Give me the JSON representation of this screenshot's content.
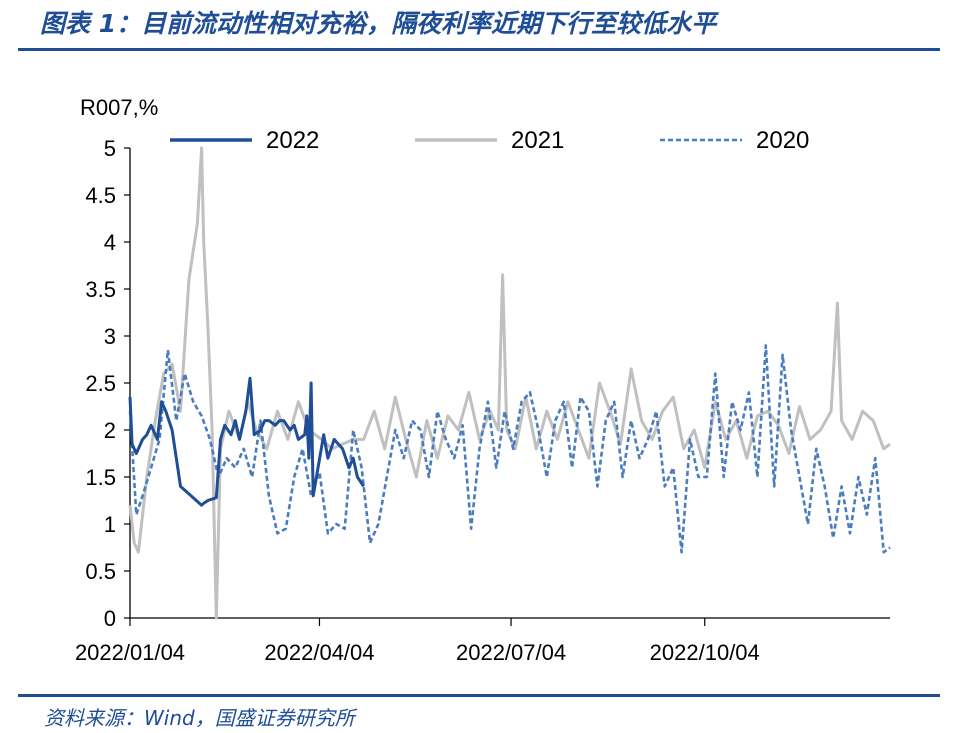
{
  "header": {
    "title": "图表 1：目前流动性相对充裕，隔夜利率近期下行至较低水平"
  },
  "footer": {
    "source": "资料来源：Wind，国盛证券研究所"
  },
  "chart_data": {
    "type": "line",
    "ylabel": "R007,%",
    "ylim": [
      0,
      5
    ],
    "yticks": [
      "0",
      "0.5",
      "1",
      "1.5",
      "2",
      "2.5",
      "3",
      "3.5",
      "4",
      "4.5",
      "5"
    ],
    "xlabel": "",
    "x_range": [
      "2022/01/04",
      "2022/12/31"
    ],
    "xticks": [
      "2022/01/04",
      "2022/04/04",
      "2022/07/04",
      "2022/10/04"
    ],
    "grid": false,
    "legend_position": "top",
    "series": [
      {
        "name": "2022",
        "style": "solid",
        "color": "#1f4e96",
        "x": [
          "2022/01/04",
          "2022/01/05",
          "2022/01/07",
          "2022/01/10",
          "2022/01/12",
          "2022/01/14",
          "2022/01/17",
          "2022/01/19",
          "2022/01/21",
          "2022/01/24",
          "2022/01/26",
          "2022/01/28",
          "2022/02/07",
          "2022/02/08",
          "2022/02/10",
          "2022/02/14",
          "2022/02/16",
          "2022/02/18",
          "2022/02/21",
          "2022/02/23",
          "2022/02/25",
          "2022/02/28",
          "2022/03/02",
          "2022/03/04",
          "2022/03/07",
          "2022/03/09",
          "2022/03/11",
          "2022/03/14",
          "2022/03/16",
          "2022/03/18",
          "2022/03/21",
          "2022/03/23",
          "2022/03/25",
          "2022/03/28",
          "2022/03/29",
          "2022/03/30",
          "2022/03/31",
          "2022/04/01",
          "2022/04/06",
          "2022/04/08",
          "2022/04/11",
          "2022/04/13",
          "2022/04/15",
          "2022/04/18",
          "2022/04/20",
          "2022/04/22",
          "2022/04/25"
        ],
        "y": [
          2.35,
          1.85,
          1.75,
          1.9,
          1.95,
          2.05,
          1.9,
          2.3,
          2.2,
          2.0,
          1.7,
          1.4,
          1.2,
          1.22,
          1.25,
          1.28,
          1.9,
          2.05,
          1.95,
          2.1,
          1.9,
          2.2,
          2.55,
          1.95,
          2.0,
          2.1,
          2.1,
          2.05,
          2.1,
          2.1,
          2.0,
          2.05,
          1.9,
          1.95,
          2.15,
          1.7,
          2.5,
          1.3,
          1.95,
          1.7,
          1.9,
          1.85,
          1.8,
          1.6,
          1.7,
          1.5,
          1.4
        ]
      },
      {
        "name": "2021",
        "style": "solid",
        "color": "#c0c0c0",
        "x": [
          "2022/01/04",
          "2022/01/06",
          "2022/01/08",
          "2022/01/12",
          "2022/01/16",
          "2022/01/20",
          "2022/01/24",
          "2022/01/28",
          "2022/02/01",
          "2022/02/05",
          "2022/02/07",
          "2022/02/08",
          "2022/02/10",
          "2022/02/12",
          "2022/02/14",
          "2022/02/16",
          "2022/02/20",
          "2022/02/25",
          "2022/03/01",
          "2022/03/05",
          "2022/03/10",
          "2022/03/15",
          "2022/03/20",
          "2022/03/25",
          "2022/03/30",
          "2022/04/05",
          "2022/04/10",
          "2022/04/15",
          "2022/04/20",
          "2022/04/25",
          "2022/04/30",
          "2022/05/05",
          "2022/05/10",
          "2022/05/15",
          "2022/05/20",
          "2022/05/25",
          "2022/05/30",
          "2022/06/04",
          "2022/06/09",
          "2022/06/14",
          "2022/06/19",
          "2022/06/24",
          "2022/06/28",
          "2022/06/30",
          "2022/07/02",
          "2022/07/06",
          "2022/07/11",
          "2022/07/16",
          "2022/07/21",
          "2022/07/26",
          "2022/07/31",
          "2022/08/05",
          "2022/08/10",
          "2022/08/15",
          "2022/08/20",
          "2022/08/25",
          "2022/08/30",
          "2022/09/04",
          "2022/09/09",
          "2022/09/14",
          "2022/09/19",
          "2022/09/24",
          "2022/09/29",
          "2022/10/04",
          "2022/10/09",
          "2022/10/14",
          "2022/10/19",
          "2022/10/24",
          "2022/10/29",
          "2022/11/03",
          "2022/11/08",
          "2022/11/13",
          "2022/11/18",
          "2022/11/23",
          "2022/11/28",
          "2022/12/03",
          "2022/12/06",
          "2022/12/08",
          "2022/12/13",
          "2022/12/18",
          "2022/12/23",
          "2022/12/28",
          "2022/12/31"
        ],
        "y": [
          1.2,
          0.8,
          0.7,
          1.5,
          2.1,
          2.6,
          2.7,
          2.2,
          3.6,
          4.2,
          5.0,
          4.0,
          3.1,
          2.0,
          0.0,
          1.8,
          2.2,
          1.9,
          2.3,
          2.0,
          1.8,
          2.2,
          1.9,
          2.3,
          2.0,
          1.9,
          1.8,
          1.85,
          1.9,
          1.9,
          2.2,
          1.8,
          2.35,
          1.9,
          1.5,
          2.1,
          1.7,
          2.15,
          2.0,
          2.4,
          1.9,
          2.2,
          2.0,
          3.65,
          2.0,
          1.8,
          2.35,
          1.8,
          2.2,
          1.9,
          2.3,
          2.0,
          1.7,
          2.5,
          2.2,
          1.85,
          2.65,
          2.1,
          1.9,
          2.2,
          2.35,
          1.8,
          2.0,
          1.6,
          2.3,
          1.9,
          2.1,
          1.7,
          2.15,
          2.2,
          2.05,
          1.75,
          2.25,
          1.9,
          2.0,
          2.2,
          3.35,
          2.1,
          1.9,
          2.2,
          2.1,
          1.8,
          1.85
        ]
      },
      {
        "name": "2020",
        "style": "dashed",
        "color": "#4a7cc0",
        "x": [
          "2022/01/04",
          "2022/01/07",
          "2022/01/10",
          "2022/01/14",
          "2022/01/18",
          "2022/01/22",
          "2022/01/26",
          "2022/01/30",
          "2022/02/03",
          "2022/02/07",
          "2022/02/11",
          "2022/02/15",
          "2022/02/19",
          "2022/02/23",
          "2022/02/27",
          "2022/03/03",
          "2022/03/07",
          "2022/03/11",
          "2022/03/15",
          "2022/03/19",
          "2022/03/23",
          "2022/03/27",
          "2022/03/31",
          "2022/04/04",
          "2022/04/08",
          "2022/04/12",
          "2022/04/16",
          "2022/04/20",
          "2022/04/24",
          "2022/04/28",
          "2022/05/02",
          "2022/05/06",
          "2022/05/10",
          "2022/05/14",
          "2022/05/18",
          "2022/05/22",
          "2022/05/26",
          "2022/05/30",
          "2022/06/03",
          "2022/06/07",
          "2022/06/11",
          "2022/06/15",
          "2022/06/19",
          "2022/06/23",
          "2022/06/27",
          "2022/07/01",
          "2022/07/05",
          "2022/07/09",
          "2022/07/13",
          "2022/07/17",
          "2022/07/21",
          "2022/07/25",
          "2022/07/29",
          "2022/08/02",
          "2022/08/06",
          "2022/08/10",
          "2022/08/14",
          "2022/08/18",
          "2022/08/22",
          "2022/08/26",
          "2022/08/30",
          "2022/09/03",
          "2022/09/07",
          "2022/09/11",
          "2022/09/15",
          "2022/09/19",
          "2022/09/23",
          "2022/09/27",
          "2022/10/01",
          "2022/10/05",
          "2022/10/09",
          "2022/10/13",
          "2022/10/17",
          "2022/10/21",
          "2022/10/25",
          "2022/10/29",
          "2022/11/02",
          "2022/11/06",
          "2022/11/10",
          "2022/11/14",
          "2022/11/18",
          "2022/11/22",
          "2022/11/26",
          "2022/11/30",
          "2022/12/04",
          "2022/12/08",
          "2022/12/12",
          "2022/12/16",
          "2022/12/20",
          "2022/12/24",
          "2022/12/28",
          "2022/12/31"
        ],
        "y": [
          2.2,
          1.1,
          1.3,
          1.6,
          1.9,
          2.85,
          2.1,
          2.6,
          2.3,
          2.15,
          1.9,
          1.5,
          1.7,
          1.6,
          1.8,
          1.5,
          2.1,
          1.3,
          0.9,
          0.95,
          1.5,
          1.8,
          1.3,
          1.55,
          0.9,
          1.0,
          0.95,
          2.0,
          1.6,
          0.8,
          1.0,
          1.5,
          2.0,
          1.7,
          2.1,
          2.0,
          1.5,
          2.2,
          1.9,
          1.7,
          2.05,
          0.95,
          1.8,
          2.3,
          1.6,
          2.2,
          1.8,
          2.3,
          2.4,
          2.0,
          1.5,
          2.1,
          2.3,
          1.6,
          2.35,
          2.2,
          1.4,
          2.1,
          2.3,
          1.5,
          2.1,
          1.7,
          1.9,
          2.2,
          1.4,
          1.6,
          0.7,
          1.9,
          1.5,
          1.5,
          2.6,
          1.5,
          2.3,
          2.0,
          2.4,
          1.5,
          2.9,
          1.4,
          2.8,
          2.0,
          1.5,
          1.0,
          1.8,
          1.4,
          0.85,
          1.4,
          0.9,
          1.5,
          1.1,
          1.7,
          0.7,
          0.75
        ]
      }
    ]
  }
}
